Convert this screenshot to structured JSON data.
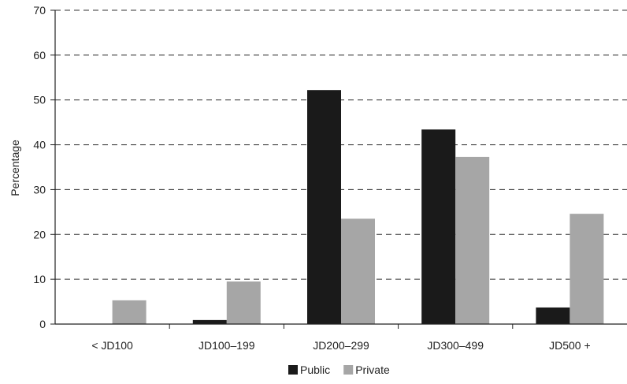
{
  "chart_data": {
    "type": "bar",
    "title": "",
    "xlabel": "",
    "ylabel": "Percentage",
    "ylim": [
      0,
      70
    ],
    "yticks": [
      0,
      10,
      20,
      30,
      40,
      50,
      60,
      70
    ],
    "grid": "y-dashed",
    "legend_position": "bottom-center",
    "categories": [
      "< JD100",
      "JD100–199",
      "JD200–299",
      "JD300–499",
      "JD500 +"
    ],
    "series": [
      {
        "name": "Public",
        "color": "#1a1a1a",
        "values": [
          0,
          0.9,
          52.2,
          43.4,
          3.7
        ]
      },
      {
        "name": "Private",
        "color": "#a6a6a6",
        "values": [
          5.3,
          9.5,
          23.5,
          37.3,
          24.6
        ]
      }
    ]
  }
}
